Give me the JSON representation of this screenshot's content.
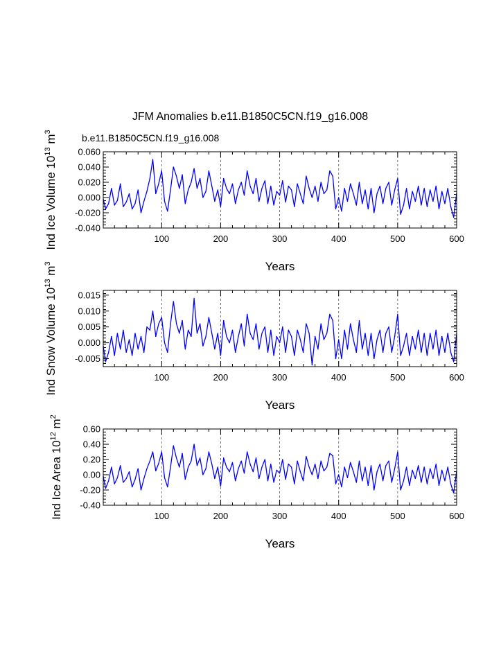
{
  "figure": {
    "title": "JFM Anomalies b.e11.B1850C5CN.f19_g16.008",
    "case_label": "b.e11.B1850C5CN.f19_g16.008",
    "case_color": "#0000ff"
  },
  "chart_data": [
    {
      "type": "line",
      "xlabel": "Years",
      "ylabel_main": "Ind Ice Volume 10",
      "ylabel_exp": "13",
      "ylabel_unit": " m",
      "ylabel_unit_exp": "3",
      "xlim": [
        1,
        600
      ],
      "ylim": [
        -0.04,
        0.06
      ],
      "xticks": [
        100,
        200,
        300,
        400,
        500,
        600
      ],
      "yticks": [
        -0.04,
        -0.02,
        0.0,
        0.02,
        0.04,
        0.06
      ],
      "ytick_labels": [
        "-0.040",
        "-0.020",
        "0.000",
        "0.020",
        "0.040",
        "0.060"
      ],
      "vlines": [
        100,
        200,
        300,
        400,
        500
      ],
      "series": [
        {
          "name": "b.e11.B1850C5CN.f19_g16.008",
          "color": "#0000ff",
          "x": [
            1,
            5,
            10,
            15,
            20,
            25,
            30,
            35,
            40,
            45,
            50,
            55,
            60,
            65,
            70,
            75,
            80,
            85,
            90,
            95,
            100,
            105,
            110,
            115,
            120,
            125,
            130,
            135,
            140,
            145,
            150,
            155,
            160,
            165,
            170,
            175,
            180,
            185,
            190,
            195,
            200,
            205,
            210,
            215,
            220,
            225,
            230,
            235,
            240,
            245,
            250,
            255,
            260,
            265,
            270,
            275,
            280,
            285,
            290,
            295,
            300,
            305,
            310,
            315,
            320,
            325,
            330,
            335,
            340,
            345,
            350,
            355,
            360,
            365,
            370,
            375,
            380,
            385,
            390,
            395,
            400,
            405,
            410,
            415,
            420,
            425,
            430,
            435,
            440,
            445,
            450,
            455,
            460,
            465,
            470,
            475,
            480,
            485,
            490,
            495,
            500,
            505,
            510,
            515,
            520,
            525,
            530,
            535,
            540,
            545,
            550,
            555,
            560,
            565,
            570,
            575,
            580,
            585,
            590,
            595,
            600
          ],
          "values": [
            -0.002,
            -0.015,
            -0.008,
            0.012,
            -0.01,
            -0.004,
            0.018,
            -0.012,
            -0.006,
            0.005,
            -0.015,
            -0.008,
            0.01,
            -0.02,
            -0.005,
            0.008,
            0.025,
            0.05,
            0.005,
            0.018,
            0.035,
            -0.005,
            -0.018,
            0.01,
            0.04,
            0.028,
            0.012,
            0.03,
            -0.008,
            0.01,
            0.02,
            0.038,
            0.012,
            0.025,
            0.0,
            0.008,
            0.035,
            0.015,
            -0.005,
            0.01,
            -0.012,
            0.025,
            0.012,
            0.005,
            0.018,
            -0.008,
            0.01,
            0.02,
            0.003,
            0.035,
            0.015,
            0.005,
            0.025,
            -0.005,
            0.012,
            0.022,
            -0.008,
            0.015,
            -0.01,
            0.008,
            0.003,
            0.022,
            -0.006,
            0.015,
            0.01,
            -0.012,
            0.018,
            0.005,
            -0.008,
            0.028,
            0.012,
            0.0,
            0.015,
            -0.005,
            0.02,
            0.005,
            0.01,
            0.035,
            0.028,
            -0.015,
            0.0,
            -0.018,
            0.012,
            -0.005,
            0.018,
            0.005,
            -0.01,
            0.02,
            -0.008,
            0.01,
            -0.015,
            0.012,
            -0.02,
            0.005,
            0.015,
            -0.008,
            0.012,
            0.02,
            -0.01,
            0.01,
            0.025,
            -0.022,
            -0.01,
            0.012,
            -0.015,
            0.008,
            -0.005,
            0.015,
            -0.01,
            0.012,
            -0.012,
            0.01,
            -0.005,
            0.015,
            -0.015,
            0.008,
            -0.008,
            0.012,
            -0.012,
            -0.026,
            0.006
          ]
        }
      ]
    },
    {
      "type": "line",
      "xlabel": "Years",
      "ylabel_main": "Ind Snow Volume 10",
      "ylabel_exp": "13",
      "ylabel_unit": " m",
      "ylabel_unit_exp": "3",
      "xlim": [
        1,
        600
      ],
      "ylim": [
        -0.0075,
        0.0165
      ],
      "xticks": [
        100,
        200,
        300,
        400,
        500,
        600
      ],
      "yticks": [
        -0.005,
        0.0,
        0.005,
        0.01,
        0.015
      ],
      "ytick_labels": [
        "-0.005",
        "0.000",
        "0.005",
        "0.010",
        "0.015"
      ],
      "vlines": [
        100,
        200,
        300,
        400,
        500
      ],
      "series": [
        {
          "name": "b.e11.B1850C5CN.f19_g16.008",
          "color": "#0000ff",
          "x": [
            1,
            5,
            10,
            15,
            20,
            25,
            30,
            35,
            40,
            45,
            50,
            55,
            60,
            65,
            70,
            75,
            80,
            85,
            90,
            95,
            100,
            105,
            110,
            115,
            120,
            125,
            130,
            135,
            140,
            145,
            150,
            155,
            160,
            165,
            170,
            175,
            180,
            185,
            190,
            195,
            200,
            205,
            210,
            215,
            220,
            225,
            230,
            235,
            240,
            245,
            250,
            255,
            260,
            265,
            270,
            275,
            280,
            285,
            290,
            295,
            300,
            305,
            310,
            315,
            320,
            325,
            330,
            335,
            340,
            345,
            350,
            355,
            360,
            365,
            370,
            375,
            380,
            385,
            390,
            395,
            400,
            405,
            410,
            415,
            420,
            425,
            430,
            435,
            440,
            445,
            450,
            455,
            460,
            465,
            470,
            475,
            480,
            485,
            490,
            495,
            500,
            505,
            510,
            515,
            520,
            525,
            530,
            535,
            540,
            545,
            550,
            555,
            560,
            565,
            570,
            575,
            580,
            585,
            590,
            595,
            600
          ],
          "values": [
            -0.001,
            -0.006,
            -0.003,
            0.002,
            -0.004,
            0.003,
            -0.002,
            0.004,
            -0.003,
            0.001,
            -0.004,
            0.003,
            -0.002,
            0.002,
            -0.003,
            0.005,
            0.004,
            0.01,
            0.002,
            0.006,
            0.008,
            0.0,
            -0.003,
            0.006,
            0.013,
            0.006,
            0.003,
            0.007,
            -0.002,
            0.004,
            0.002,
            0.014,
            0.003,
            0.006,
            -0.001,
            0.002,
            0.008,
            0.003,
            -0.002,
            0.003,
            -0.004,
            0.007,
            0.002,
            0.0,
            0.004,
            -0.003,
            0.002,
            0.006,
            -0.001,
            0.009,
            0.003,
            0.001,
            0.006,
            -0.002,
            0.003,
            0.005,
            -0.003,
            0.004,
            -0.004,
            0.002,
            0.0,
            0.005,
            -0.003,
            0.004,
            0.002,
            -0.004,
            0.004,
            0.001,
            -0.003,
            0.006,
            0.003,
            -0.007,
            0.002,
            -0.002,
            0.006,
            0.001,
            0.003,
            0.009,
            0.007,
            -0.005,
            0.001,
            -0.005,
            0.004,
            -0.002,
            0.006,
            0.001,
            -0.003,
            0.007,
            -0.002,
            0.003,
            -0.004,
            0.003,
            -0.005,
            0.001,
            0.004,
            -0.003,
            0.003,
            0.005,
            -0.003,
            0.002,
            0.009,
            -0.004,
            -0.001,
            0.003,
            -0.004,
            0.002,
            -0.002,
            0.004,
            -0.003,
            0.003,
            -0.004,
            0.003,
            -0.002,
            0.004,
            -0.004,
            0.002,
            -0.003,
            0.003,
            -0.003,
            -0.006,
            0.003
          ]
        }
      ]
    },
    {
      "type": "line",
      "xlabel": "Years",
      "ylabel_main": "Ind Ice Area 10",
      "ylabel_exp": "12",
      "ylabel_unit": " m",
      "ylabel_unit_exp": "2",
      "xlim": [
        1,
        600
      ],
      "ylim": [
        -0.4,
        0.6
      ],
      "xticks": [
        100,
        200,
        300,
        400,
        500,
        600
      ],
      "yticks": [
        -0.4,
        -0.2,
        0.0,
        0.2,
        0.4,
        0.6
      ],
      "ytick_labels": [
        "-0.40",
        "-0.20",
        "0.00",
        "0.20",
        "0.40",
        "0.60"
      ],
      "vlines": [
        100,
        200,
        300,
        400,
        500
      ],
      "series": [
        {
          "name": "b.e11.B1850C5CN.f19_g16.008",
          "color": "#0000ff",
          "x": [
            1,
            5,
            10,
            15,
            20,
            25,
            30,
            35,
            40,
            45,
            50,
            55,
            60,
            65,
            70,
            75,
            80,
            85,
            90,
            95,
            100,
            105,
            110,
            115,
            120,
            125,
            130,
            135,
            140,
            145,
            150,
            155,
            160,
            165,
            170,
            175,
            180,
            185,
            190,
            195,
            200,
            205,
            210,
            215,
            220,
            225,
            230,
            235,
            240,
            245,
            250,
            255,
            260,
            265,
            270,
            275,
            280,
            285,
            290,
            295,
            300,
            305,
            310,
            315,
            320,
            325,
            330,
            335,
            340,
            345,
            350,
            355,
            360,
            365,
            370,
            375,
            380,
            385,
            390,
            395,
            400,
            405,
            410,
            415,
            420,
            425,
            430,
            435,
            440,
            445,
            450,
            455,
            460,
            465,
            470,
            475,
            480,
            485,
            490,
            495,
            500,
            505,
            510,
            515,
            520,
            525,
            530,
            535,
            540,
            545,
            550,
            555,
            560,
            565,
            570,
            575,
            580,
            585,
            590,
            595,
            600
          ],
          "values": [
            -0.02,
            -0.18,
            -0.08,
            0.1,
            -0.12,
            -0.04,
            0.12,
            -0.1,
            -0.05,
            0.04,
            -0.16,
            -0.06,
            0.08,
            -0.2,
            -0.05,
            0.08,
            0.18,
            0.3,
            0.05,
            0.15,
            0.3,
            -0.04,
            -0.16,
            0.1,
            0.38,
            0.22,
            0.1,
            0.28,
            -0.06,
            0.1,
            0.18,
            0.4,
            0.12,
            0.22,
            0.0,
            0.08,
            0.3,
            0.14,
            -0.05,
            0.1,
            -0.15,
            0.22,
            0.1,
            0.04,
            0.16,
            -0.08,
            0.08,
            0.18,
            0.02,
            0.3,
            0.14,
            0.04,
            0.22,
            -0.05,
            0.1,
            0.2,
            -0.08,
            0.14,
            -0.1,
            0.06,
            0.02,
            0.2,
            -0.06,
            0.14,
            0.1,
            -0.12,
            0.18,
            0.04,
            -0.08,
            0.24,
            0.1,
            0.0,
            0.14,
            -0.05,
            0.18,
            0.05,
            0.1,
            0.28,
            0.25,
            -0.12,
            0.0,
            -0.16,
            0.1,
            -0.04,
            0.16,
            0.04,
            -0.1,
            0.18,
            -0.08,
            0.1,
            -0.14,
            0.12,
            -0.2,
            0.04,
            0.14,
            -0.08,
            0.12,
            0.18,
            -0.1,
            0.08,
            0.3,
            -0.2,
            -0.08,
            0.1,
            -0.14,
            0.06,
            -0.05,
            0.12,
            -0.1,
            0.1,
            -0.12,
            0.08,
            -0.05,
            0.14,
            -0.14,
            0.06,
            -0.08,
            0.1,
            -0.12,
            -0.24,
            0.05
          ]
        }
      ]
    }
  ]
}
